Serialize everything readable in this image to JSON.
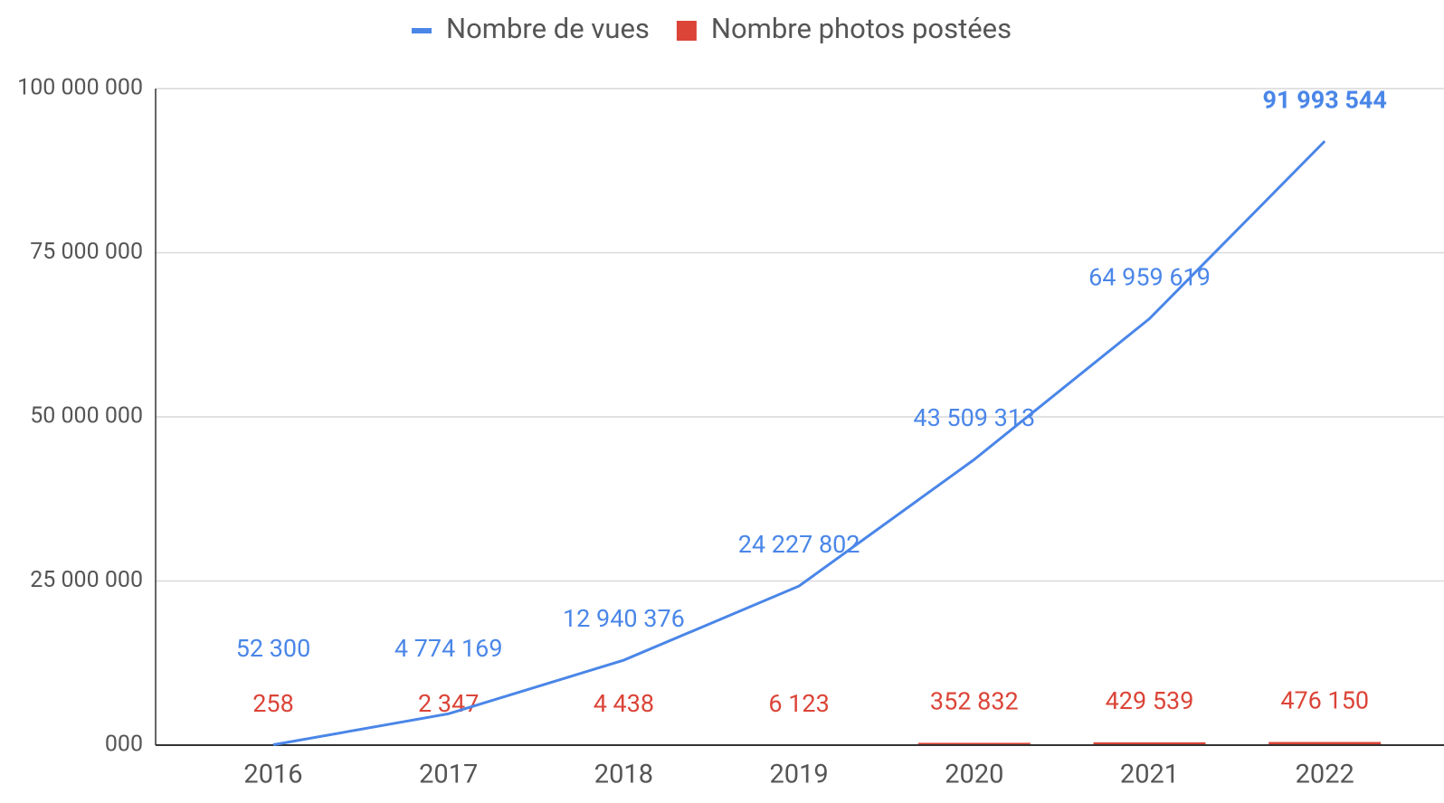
{
  "chart_data": {
    "type": "combo",
    "categories": [
      "2016",
      "2017",
      "2018",
      "2019",
      "2020",
      "2021",
      "2022"
    ],
    "series": [
      {
        "name": "Nombre de vues",
        "type": "line",
        "color": "#4a86e8",
        "values": [
          52300,
          4774169,
          12940376,
          24227802,
          43509313,
          64959619,
          91993544
        ],
        "value_labels": [
          "52 300",
          "4 774 169",
          "12 940 376",
          "24 227 802",
          "43 509 313",
          "64 959 619",
          "91 993 544"
        ]
      },
      {
        "name": "Nombre photos postées",
        "type": "bar",
        "color": "#db4437",
        "values": [
          258,
          2347,
          4438,
          6123,
          352832,
          429539,
          476150
        ],
        "value_labels": [
          "258",
          "2 347",
          "4 438",
          "6 123",
          "352 832",
          "429 539",
          "476 150"
        ]
      }
    ],
    "ylim": [
      0,
      100000000
    ],
    "yticks": [
      {
        "value": 0,
        "label": "000"
      },
      {
        "value": 25000000,
        "label": "25 000 000"
      },
      {
        "value": 50000000,
        "label": "50 000 000"
      },
      {
        "value": 75000000,
        "label": "75 000 000"
      },
      {
        "value": 100000000,
        "label": "100 000 000"
      }
    ],
    "grid": true,
    "legend": "top"
  }
}
